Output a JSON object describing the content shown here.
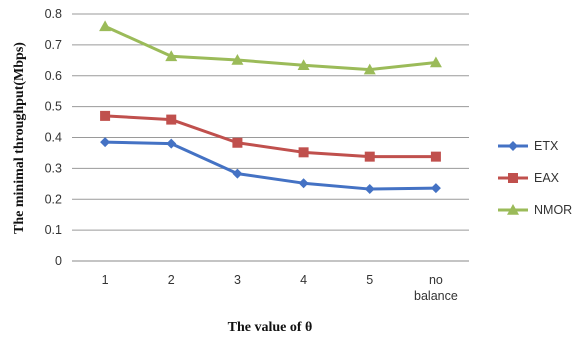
{
  "chart_data": {
    "type": "line",
    "categories": [
      "1",
      "2",
      "3",
      "4",
      "5",
      "no balance"
    ],
    "xlabel": "The value of θ",
    "ylabel": "The minimal throughput(Mbps)",
    "ylim": [
      0,
      0.8
    ],
    "yticks": [
      0,
      0.1,
      0.2,
      0.3,
      0.4,
      0.5,
      0.6,
      0.7,
      0.8
    ],
    "ytick_labels": [
      "0",
      "0.1",
      "0.2",
      "0.3",
      "0.4",
      "0.5",
      "0.6",
      "0.7",
      "0.8"
    ],
    "grid": true,
    "legend_position": "right",
    "series": [
      {
        "name": "ETX",
        "color": "#4472C4",
        "marker": "diamond",
        "values": [
          0.385,
          0.38,
          0.283,
          0.252,
          0.233,
          0.236
        ]
      },
      {
        "name": "EAX",
        "color": "#C0504D",
        "marker": "square",
        "values": [
          0.47,
          0.458,
          0.383,
          0.352,
          0.338,
          0.338
        ]
      },
      {
        "name": "NMOR",
        "color": "#9BBB59",
        "marker": "triangle",
        "values": [
          0.76,
          0.663,
          0.651,
          0.634,
          0.62,
          0.643
        ]
      }
    ]
  }
}
